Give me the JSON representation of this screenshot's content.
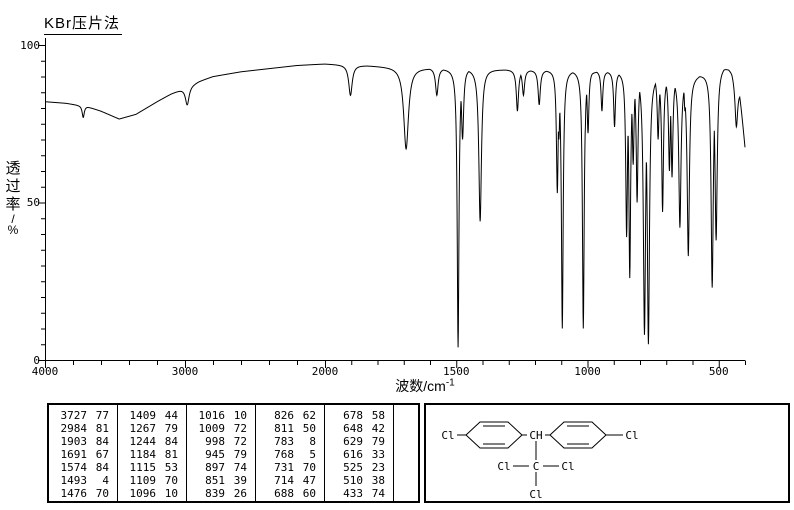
{
  "title": "KBr压片法",
  "plot": {
    "ylabel_chars": [
      "透",
      "过",
      "率",
      "/",
      "%"
    ],
    "xlabel_main": "波数/cm",
    "xlabel_sup": "-1",
    "y_ticks": [
      "100",
      "50",
      "0"
    ],
    "x_ticks": [
      "4000",
      "3000",
      "2000",
      "1500",
      "1000",
      "500"
    ]
  },
  "chart_data": {
    "type": "line",
    "title": "KBr压片法",
    "xlabel": "波数/cm-1",
    "ylabel": "透过率/%",
    "ylim": [
      0,
      100
    ],
    "grid": false,
    "x_axis": {
      "ticks": [
        4000,
        3000,
        2000,
        1500,
        1000,
        500
      ],
      "note": "split linear scale: 4000-2000 compressed, 2000-400 expanded",
      "range": [
        4000,
        400
      ]
    },
    "y_axis": {
      "ticks": [
        0,
        50,
        100
      ]
    },
    "peaks": [
      [
        3727,
        77,
        9
      ],
      [
        2984,
        81,
        16
      ],
      [
        1903,
        84,
        8
      ],
      [
        1691,
        67,
        11
      ],
      [
        1574,
        84,
        6
      ],
      [
        1493,
        4,
        4
      ],
      [
        1476,
        70,
        5
      ],
      [
        1409,
        44,
        6
      ],
      [
        1267,
        79,
        5
      ],
      [
        1244,
        84,
        5
      ],
      [
        1184,
        81,
        5
      ],
      [
        1115,
        53,
        4
      ],
      [
        1109,
        70,
        4
      ],
      [
        1096,
        10,
        4
      ],
      [
        1016,
        10,
        4
      ],
      [
        1009,
        72,
        3
      ],
      [
        998,
        72,
        4
      ],
      [
        945,
        79,
        4
      ],
      [
        897,
        74,
        4
      ],
      [
        851,
        39,
        4
      ],
      [
        839,
        26,
        4
      ],
      [
        826,
        62,
        4
      ],
      [
        811,
        50,
        4
      ],
      [
        783,
        8,
        5
      ],
      [
        768,
        5,
        5
      ],
      [
        731,
        70,
        4
      ],
      [
        714,
        47,
        4
      ],
      [
        688,
        60,
        4
      ],
      [
        678,
        58,
        4
      ],
      [
        648,
        42,
        5
      ],
      [
        629,
        79,
        3
      ],
      [
        616,
        33,
        5
      ],
      [
        525,
        23,
        5
      ],
      [
        510,
        38,
        5
      ],
      [
        433,
        74,
        6
      ]
    ],
    "baseline": [
      [
        4000,
        82
      ],
      [
        3850,
        81.5
      ],
      [
        3700,
        80.5
      ],
      [
        3600,
        79
      ],
      [
        3470,
        76.5
      ],
      [
        3350,
        78
      ],
      [
        3200,
        82
      ],
      [
        3100,
        84.5
      ],
      [
        3000,
        86.5
      ],
      [
        2900,
        88.5
      ],
      [
        2800,
        90
      ],
      [
        2600,
        91.5
      ],
      [
        2400,
        92.5
      ],
      [
        2200,
        93.5
      ],
      [
        2000,
        94
      ],
      [
        1850,
        93.5
      ],
      [
        1700,
        93
      ],
      [
        1550,
        92.5
      ],
      [
        1400,
        92.5
      ],
      [
        1250,
        92
      ],
      [
        1100,
        92
      ],
      [
        1000,
        92
      ],
      [
        900,
        91.5
      ],
      [
        800,
        91
      ],
      [
        700,
        90
      ],
      [
        640,
        89.5
      ],
      [
        580,
        90.5
      ],
      [
        520,
        92
      ],
      [
        480,
        93.5
      ],
      [
        450,
        92
      ],
      [
        420,
        86
      ],
      [
        400,
        68
      ]
    ]
  },
  "table": {
    "columns": [
      [
        [
          3727,
          77
        ],
        [
          2984,
          81
        ],
        [
          1903,
          84
        ],
        [
          1691,
          67
        ],
        [
          1574,
          84
        ],
        [
          1493,
          4
        ],
        [
          1476,
          70
        ]
      ],
      [
        [
          1409,
          44
        ],
        [
          1267,
          79
        ],
        [
          1244,
          84
        ],
        [
          1184,
          81
        ],
        [
          1115,
          53
        ],
        [
          1109,
          70
        ],
        [
          1096,
          10
        ]
      ],
      [
        [
          1016,
          10
        ],
        [
          1009,
          72
        ],
        [
          998,
          72
        ],
        [
          945,
          79
        ],
        [
          897,
          74
        ],
        [
          851,
          39
        ],
        [
          839,
          26
        ]
      ],
      [
        [
          826,
          62
        ],
        [
          811,
          50
        ],
        [
          783,
          8
        ],
        [
          768,
          5
        ],
        [
          731,
          70
        ],
        [
          714,
          47
        ],
        [
          688,
          60
        ]
      ],
      [
        [
          678,
          58
        ],
        [
          648,
          42
        ],
        [
          629,
          79
        ],
        [
          616,
          33
        ],
        [
          525,
          23
        ],
        [
          510,
          38
        ],
        [
          433,
          74
        ]
      ]
    ]
  },
  "structure": {
    "labels": {
      "left_cl": "Cl",
      "right_cl": "Cl",
      "methine": "CH",
      "central_c": "C",
      "c_cl_left": "Cl",
      "c_cl_right": "Cl",
      "c_cl_bottom": "Cl"
    }
  }
}
